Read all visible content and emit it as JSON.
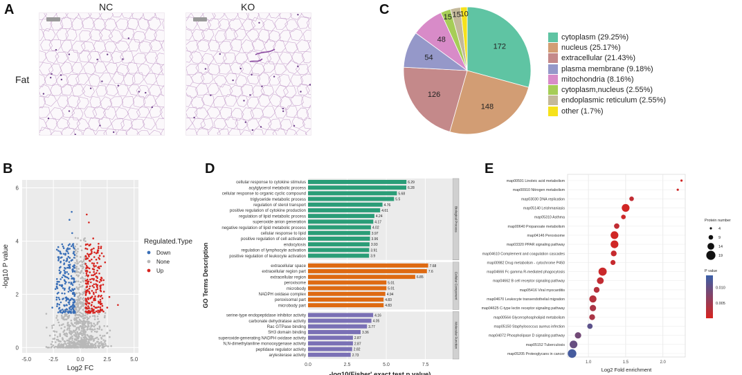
{
  "panelA": {
    "label": "A",
    "col_headers": [
      "NC",
      "KO"
    ],
    "row_label": "Fat"
  },
  "colors": {
    "down": "#3a6fb7",
    "none": "#b8b8b8",
    "up": "#d7241f",
    "bio": "#2a9d77",
    "cell": "#de6a12",
    "mol": "#7a70b5",
    "pvalue_high": "#3a5fa8",
    "pvalue_low": "#d7241f"
  },
  "chart_data": [
    {
      "id": "C",
      "label": "C",
      "type": "pie",
      "categories": [
        "cytoplasm",
        "nucleus",
        "extracellular",
        "plasma membrane",
        "mitochondria",
        "cytoplasm,nucleus",
        "endoplasmic reticulum",
        "other"
      ],
      "values": [
        172,
        148,
        126,
        54,
        48,
        15,
        15,
        10
      ],
      "legend": [
        "cytoplasm (29.25%)",
        "nucleus (25.17%)",
        "extracellular (21.43%)",
        "plasma membrane (9.18%)",
        "mitochondria (8.16%)",
        "cytoplasm,nucleus (2.55%)",
        "endoplasmic reticulum (2.55%)",
        "other (1.7%)"
      ],
      "slice_labels": [
        "172",
        "148",
        "126",
        "54",
        "48",
        "15",
        "15",
        "10"
      ],
      "slice_colors": [
        "#5fc4a3",
        "#d29d74",
        "#c4898a",
        "#9598c9",
        "#d88bc8",
        "#a6cd57",
        "#c4b99a",
        "#f6e21b"
      ]
    },
    {
      "id": "B",
      "label": "B",
      "type": "scatter",
      "title": "",
      "xlabel": "Log2 FC",
      "ylabel": "-log10 P value",
      "xlim": [
        -5.4,
        5.4
      ],
      "ylim": [
        -0.2,
        6.3
      ],
      "xticks": [
        "-5.0",
        "-2.5",
        "0.0",
        "2.5",
        "5.0"
      ],
      "xtick_values": [
        -5,
        -2.5,
        0,
        2.5,
        5
      ],
      "yticks": [
        "0",
        "2",
        "4",
        "6"
      ],
      "ytick_values": [
        0,
        2,
        4,
        6
      ],
      "legend_title": "Regulated.Type",
      "legend": [
        "Down",
        "None",
        "Up"
      ],
      "series": [
        {
          "name": "Down",
          "points": [
            [
              -1.2,
              3.0
            ],
            [
              -1.7,
              2.3
            ],
            [
              -2.3,
              2.2
            ],
            [
              -1.0,
              4.8
            ],
            [
              -0.8,
              5.1
            ],
            [
              -2.0,
              3.4
            ],
            [
              -1.5,
              2.9
            ],
            [
              -0.9,
              1.8
            ],
            [
              -1.3,
              1.6
            ],
            [
              -0.7,
              2.6
            ],
            [
              -1.9,
              2.8
            ],
            [
              -0.6,
              3.6
            ],
            [
              -2.6,
              1.5
            ],
            [
              -1.1,
              2.1
            ],
            [
              -1.6,
              3.8
            ],
            [
              -0.75,
              4.3
            ],
            [
              -2.2,
              1.8
            ],
            [
              -1.4,
              2.4
            ],
            [
              -0.55,
              2.0
            ],
            [
              -1.8,
              1.4
            ]
          ]
        },
        {
          "name": "Up",
          "points": [
            [
              0.8,
              4.7
            ],
            [
              0.6,
              5.0
            ],
            [
              1.3,
              3.4
            ],
            [
              2.2,
              2.1
            ],
            [
              2.5,
              1.5
            ],
            [
              3.5,
              1.6
            ],
            [
              1.5,
              2.8
            ],
            [
              0.9,
              2.3
            ],
            [
              1.1,
              1.7
            ],
            [
              2.0,
              2.6
            ],
            [
              1.7,
              3.9
            ],
            [
              0.7,
              3.0
            ],
            [
              1.9,
              1.4
            ],
            [
              0.55,
              1.8
            ],
            [
              1.2,
              4.1
            ],
            [
              2.7,
              1.9
            ],
            [
              1.6,
              2.2
            ],
            [
              0.65,
              3.7
            ],
            [
              1.4,
              1.5
            ],
            [
              2.3,
              3.2
            ]
          ]
        }
      ]
    },
    {
      "id": "D",
      "label": "D",
      "type": "bar",
      "xlabel": "-log10(Fisher' exact test p value)",
      "ylabel": "GO Terms Description",
      "xlim": [
        0,
        9.2
      ],
      "xticks": [
        "0.0",
        "2.5",
        "5.0",
        "7.5"
      ],
      "xtick_values": [
        0,
        2.5,
        5,
        7.5
      ],
      "groups": [
        {
          "name": "Biological Process",
          "color_key": "bio",
          "categories": [
            "cellular response to cytokine stimulus",
            "acylglycerol metabolic process",
            "cellular response to organic cyclic compound",
            "triglyceride metabolic process",
            "regulation of sterol transport",
            "positive regulation of cytokine production",
            "regulation of lipid metabolic process",
            "superoxide anion generation",
            "negative regulation of lipid metabolic process",
            "cellular response to lipid",
            "positive regulation of cell activation",
            "endocytosis",
            "regulation of lymphocyte activation",
            "positive regulation of leukocyte activation"
          ],
          "values": [
            6.29,
            6.28,
            5.68,
            5.5,
            4.76,
            4.61,
            4.24,
            4.17,
            4.02,
            3.97,
            3.96,
            3.93,
            3.91,
            3.9
          ],
          "value_labels": [
            "6.29",
            "6.28",
            "5.68",
            "5.5",
            "4.76",
            "4.61",
            "4.24",
            "4.17",
            "4.02",
            "3.97",
            "3.96",
            "3.93",
            "3.91",
            "3.9"
          ]
        },
        {
          "name": "Cellular Component",
          "color_key": "cell",
          "categories": [
            "extracellular space",
            "extracellular region part",
            "extracellular region",
            "peroxisome",
            "microbody",
            "NADPH oxidase complex",
            "peroxisomal part",
            "microbody part"
          ],
          "values": [
            7.68,
            7.6,
            6.85,
            5.01,
            5.01,
            4.94,
            4.83,
            4.83
          ],
          "value_labels": [
            "7.68",
            "7.6",
            "6.85",
            "5.01",
            "5.01",
            "4.94",
            "4.83",
            "4.83"
          ]
        },
        {
          "name": "Molecular Function",
          "color_key": "mol",
          "categories": [
            "serine-type endopeptidase inhibitor activity",
            "carbonate dehydratase activity",
            "Rac GTPase binding",
            "SH3 domain binding",
            "superoxide-generating NADPH oxidase activity",
            "N,N-dimethylaniline monooxygenase activity",
            "peptidase regulator activity",
            "arylesterase activity"
          ],
          "values": [
            4.16,
            4.05,
            3.77,
            3.36,
            2.87,
            2.87,
            2.82,
            2.73
          ],
          "value_labels": [
            "4.16",
            "4.05",
            "3.77",
            "3.36",
            "2.87",
            "2.87",
            "2.82",
            "2.73"
          ]
        }
      ]
    },
    {
      "id": "E",
      "label": "E",
      "type": "scatter",
      "xlabel": "Log2 Fold enrichment",
      "xlim": [
        0.72,
        2.3
      ],
      "xticks": [
        "1.0",
        "1.5",
        "2.0"
      ],
      "xtick_values": [
        1.0,
        1.5,
        2.0
      ],
      "categories": [
        "map00591 Linoleic acid metabolism",
        "map00910 Nitrogen metabolism",
        "map03030 DNA replication",
        "map05140 Leishmaniasis",
        "map05310 Asthma",
        "map00640 Propanoate metabolism",
        "map04146 Peroxisome",
        "map03320 PPAR signaling pathway",
        "map04610 Complement and coagulation cascades",
        "map00982 Drug metabolism - cytochrome P450",
        "map04666 Fc gamma R-mediated phagocytosis",
        "map04662 B cell receptor signaling pathway",
        "map05416 Viral myocarditis",
        "map04670 Leukocyte transendothelial migration",
        "map04625 C-type lectin receptor signaling pathway",
        "map00564 Glycerophospholipid metabolism",
        "map05150 Staphylococcus aureus infection",
        "map04072 Phospholipase D signaling pathway",
        "map05152 Tuberculosis",
        "map05205 Proteoglycans in cancer"
      ],
      "x": [
        2.25,
        2.2,
        1.58,
        1.5,
        1.47,
        1.38,
        1.35,
        1.35,
        1.34,
        1.33,
        1.19,
        1.16,
        1.11,
        1.06,
        1.06,
        1.05,
        1.02,
        0.86,
        0.8,
        0.78
      ],
      "protein_number": [
        4,
        4,
        9,
        16,
        9,
        11,
        16,
        16,
        12,
        10,
        17,
        14,
        12,
        15,
        13,
        12,
        11,
        13,
        16,
        18
      ],
      "p_value": [
        0.0005,
        0.0008,
        0.002,
        0.0005,
        0.001,
        0.002,
        0.0006,
        0.0006,
        0.0015,
        0.0015,
        0.0012,
        0.002,
        0.003,
        0.003,
        0.004,
        0.004,
        0.011,
        0.009,
        0.01,
        0.013
      ],
      "size_legend_title": "Protein number",
      "size_legend": [
        "4",
        "9",
        "14",
        "19"
      ],
      "size_legend_values": [
        4,
        9,
        14,
        19
      ],
      "color_legend_title": "P value",
      "color_legend": [
        "0.010",
        "0.005"
      ],
      "color_legend_values": [
        0.01,
        0.005
      ],
      "color_range": [
        0.0,
        0.014
      ]
    }
  ]
}
